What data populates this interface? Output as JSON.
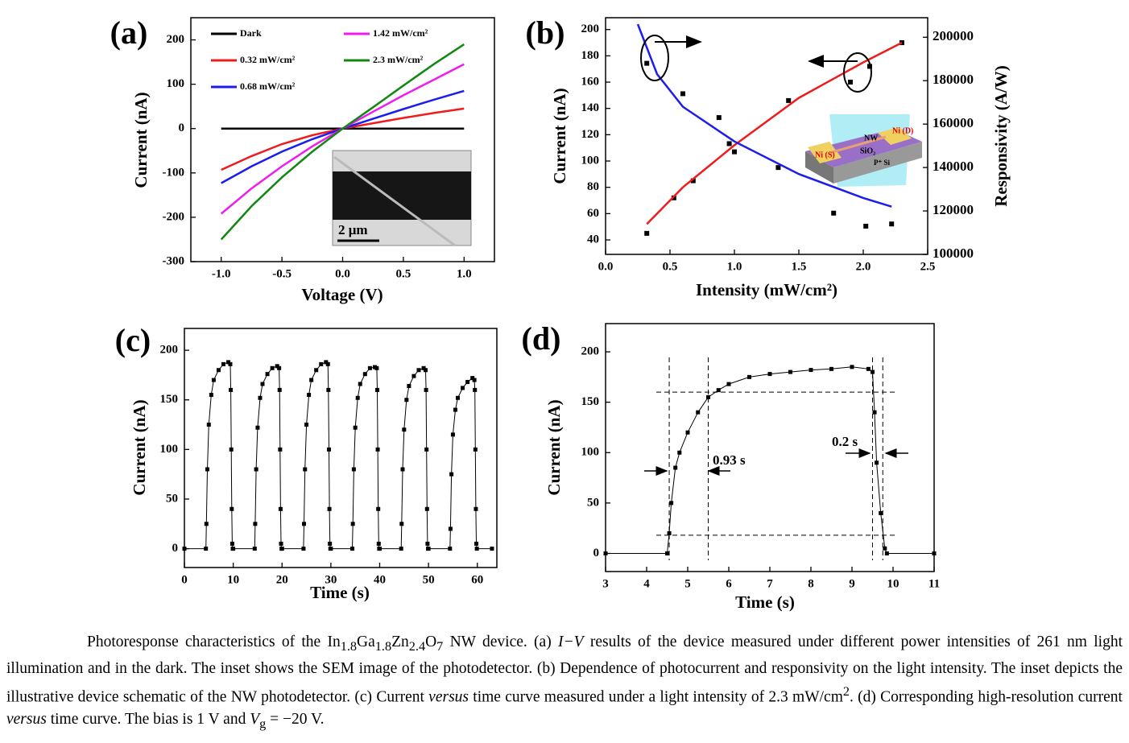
{
  "chart_data": [
    {
      "type": "line",
      "panel": "(a)",
      "x_label": "Voltage (V)",
      "y_label": "Current (nA)",
      "x": [
        -1,
        -0.75,
        -0.5,
        -0.25,
        0,
        0.25,
        0.5,
        0.75,
        1
      ],
      "series": [
        {
          "name": "Dark",
          "color": "#000000",
          "values": [
            0,
            0,
            0,
            0,
            0,
            0,
            0,
            0,
            0
          ]
        },
        {
          "name": "0.32 mW/cm²",
          "color": "#ee1c1c",
          "values": [
            -93,
            -62,
            -35,
            -15,
            0,
            12,
            24,
            35,
            45
          ]
        },
        {
          "name": "0.68 mW/cm²",
          "color": "#1c1cee",
          "values": [
            -123,
            -85,
            -52,
            -24,
            0,
            22,
            44,
            65,
            85
          ]
        },
        {
          "name": "1.42 mW/cm²",
          "color": "#ee1cee",
          "values": [
            -192,
            -135,
            -85,
            -40,
            0,
            38,
            75,
            110,
            145
          ]
        },
        {
          "name": "2.3 mW/cm²",
          "color": "#118811",
          "values": [
            -250,
            -175,
            -110,
            -52,
            0,
            48,
            97,
            145,
            190
          ]
        }
      ],
      "xlim": [
        -1.25,
        1.25
      ],
      "xticks": [
        {
          "value": -1,
          "label": "-1.0"
        },
        -0.5,
        {
          "value": 0,
          "label": "0.0"
        },
        0.5,
        {
          "value": 1,
          "label": "1.0"
        }
      ],
      "ylim": [
        -300,
        250
      ],
      "yticks": [
        -300,
        -200,
        -100,
        0,
        100,
        200
      ],
      "legend": "upper left",
      "inset_label": "2 μm"
    },
    {
      "type": "scatter",
      "panel": "(b)",
      "x_label": "Intensity (mW/cm²)",
      "y_label": "Current (nA)",
      "y2_label": "Responsivity (A/W)",
      "series": [
        {
          "color": "#000000",
          "mode": "markers",
          "x": [
            0.32,
            0.53,
            0.68,
            1.0,
            1.42,
            1.9,
            2.05,
            2.3
          ],
          "values": [
            45,
            72,
            85,
            107,
            146,
            160,
            172,
            190
          ]
        },
        {
          "color": "#000000",
          "mode": "markers",
          "axis": "y2",
          "x": [
            0.32,
            0.6,
            0.88,
            0.96,
            1.34,
            1.77,
            2.02,
            2.22
          ],
          "values": [
            188000,
            174000,
            163000,
            151000,
            140000,
            119000,
            113000,
            114000
          ]
        },
        {
          "color": "#ee1c1c",
          "mode": "lines",
          "x": [
            0.32,
            0.6,
            1.0,
            1.5,
            2.0,
            2.3
          ],
          "values": [
            52,
            80,
            112,
            148,
            175,
            190
          ]
        },
        {
          "color": "#1c1cee",
          "mode": "lines",
          "axis": "y2",
          "x": [
            0.25,
            0.4,
            0.6,
            1.0,
            1.5,
            2.0,
            2.22
          ],
          "values": [
            206000,
            183000,
            168000,
            152000,
            137000,
            126000,
            122000
          ]
        }
      ],
      "xlim": [
        0,
        2.5
      ],
      "xticks": [
        {
          "value": 0,
          "label": "0.0"
        },
        0.5,
        {
          "value": 1,
          "label": "1.0"
        },
        1.5,
        {
          "value": 2,
          "label": "2.0"
        },
        2.5
      ],
      "ylim": [
        29,
        209
      ],
      "yticks": [
        40,
        60,
        80,
        100,
        120,
        140,
        160,
        180,
        200
      ],
      "y2lim": [
        100000,
        209000
      ],
      "y2ticks": [
        100000,
        120000,
        140000,
        160000,
        180000,
        200000
      ],
      "inset_labels": [
        "NW",
        "Ni (D)",
        "Ni (S)",
        "SiO₂",
        "P⁺ Si"
      ]
    },
    {
      "type": "line",
      "markers": true,
      "panel": "(c)",
      "x_label": "Time (s)",
      "y_label": "Current (nA)",
      "x": [
        0,
        4.4,
        4.5,
        4.7,
        5,
        5.5,
        6,
        7,
        8,
        9,
        9.4,
        9.5,
        9.6,
        9.7,
        9.8,
        9.9,
        10,
        14.4,
        14.5,
        14.7,
        15,
        15.5,
        16,
        17,
        18,
        19,
        19.4,
        19.5,
        19.6,
        19.7,
        19.8,
        19.9,
        20,
        24.4,
        24.5,
        24.7,
        25,
        25.5,
        26,
        27,
        28,
        29,
        29.4,
        29.5,
        29.6,
        29.7,
        29.8,
        29.9,
        30,
        34.4,
        34.5,
        34.7,
        35,
        35.5,
        36,
        37,
        38,
        39,
        39.4,
        39.5,
        39.6,
        39.7,
        39.8,
        39.9,
        40,
        44.4,
        44.5,
        44.7,
        45,
        45.5,
        46,
        47,
        48,
        49,
        49.4,
        49.5,
        49.6,
        49.7,
        49.8,
        49.9,
        50,
        54.4,
        54.5,
        54.7,
        55,
        55.5,
        56,
        57,
        58,
        59,
        59.4,
        59.5,
        59.6,
        59.7,
        59.8,
        59.9,
        63
      ],
      "series": [
        {
          "color": "#000000",
          "values": [
            0,
            0,
            25,
            80,
            125,
            155,
            170,
            180,
            186,
            188,
            186,
            160,
            100,
            40,
            5,
            0,
            0,
            0,
            25,
            80,
            122,
            152,
            166,
            176,
            182,
            184,
            182,
            160,
            100,
            40,
            5,
            0,
            0,
            0,
            25,
            80,
            125,
            155,
            170,
            180,
            186,
            188,
            186,
            160,
            100,
            40,
            5,
            0,
            0,
            0,
            25,
            80,
            122,
            152,
            166,
            176,
            182,
            183,
            182,
            160,
            100,
            40,
            5,
            0,
            0,
            0,
            25,
            80,
            120,
            150,
            164,
            174,
            180,
            182,
            180,
            160,
            100,
            40,
            5,
            0,
            0,
            0,
            20,
            75,
            115,
            140,
            152,
            162,
            168,
            172,
            170,
            160,
            100,
            40,
            5,
            0,
            0
          ]
        }
      ],
      "xlim": [
        0,
        64
      ],
      "xticks": [
        0,
        10,
        20,
        30,
        40,
        50,
        60
      ],
      "ylim": [
        -19,
        222
      ],
      "yticks": [
        0,
        50,
        100,
        150,
        200
      ]
    },
    {
      "type": "line",
      "markers": true,
      "panel": "(d)",
      "x_label": "Time (s)",
      "y_label": "Current (nA)",
      "x": [
        3,
        4.5,
        4.55,
        4.6,
        4.7,
        4.8,
        5,
        5.25,
        5.5,
        5.75,
        6,
        6.5,
        7,
        7.5,
        8,
        8.5,
        9,
        9.4,
        9.5,
        9.55,
        9.6,
        9.7,
        9.8,
        9.85,
        11
      ],
      "series": [
        {
          "color": "#000000",
          "values": [
            0,
            0,
            20,
            50,
            85,
            100,
            120,
            140,
            155,
            162,
            168,
            175,
            178,
            180,
            182,
            183,
            185,
            183,
            180,
            140,
            90,
            40,
            5,
            0,
            0
          ]
        }
      ],
      "xlim": [
        3,
        11
      ],
      "xticks": [
        3,
        4,
        5,
        6,
        7,
        8,
        9,
        10,
        11
      ],
      "ylim": [
        -18,
        228
      ],
      "yticks": [
        0,
        50,
        100,
        150,
        200
      ],
      "vlines": [
        4.55,
        5.5,
        9.5,
        9.75
      ],
      "hlines": [
        160,
        18
      ],
      "annotations": [
        "0.93 s",
        "0.2 s"
      ]
    }
  ],
  "caption": [
    "Photoresponse characteristics of the In",
    "1.8",
    "Ga",
    "1.8",
    "Zn",
    "2.4",
    "O",
    "7",
    " NW device. (a) ",
    "I−V",
    " results of the device measured under different power intensities of 261 nm light illumination and in the dark. The inset shows the SEM image of the photodetector. (b) Dependence of photocurrent and responsivity on the light intensity. The inset depicts the illustrative device schematic of the NW photodetector. (c) Current ",
    "versus",
    " time curve measured under a light intensity of 2.3 mW/cm",
    "2",
    ". (d) Corresponding high-resolution current ",
    "versus",
    " time curve. The bias is 1 V and ",
    "V",
    "g",
    " = −20 V."
  ]
}
